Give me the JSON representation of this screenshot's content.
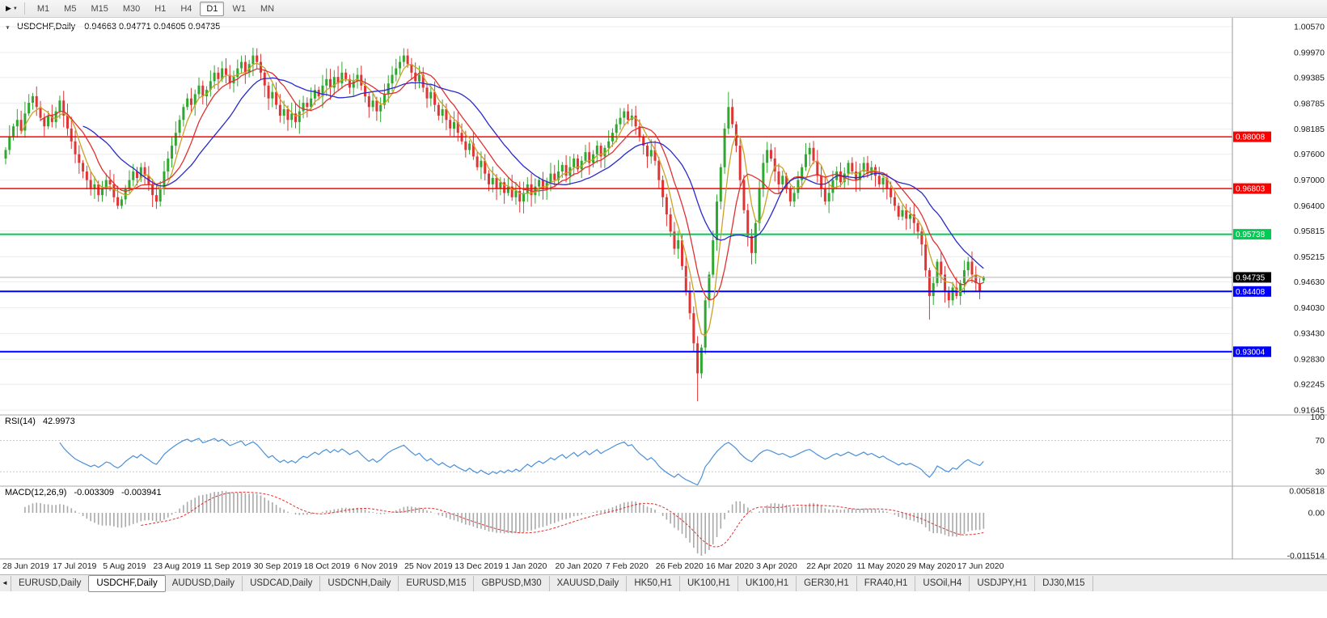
{
  "icons": {
    "chart_type_arrow": "▶",
    "dropdown": "▼",
    "chart_marker": "▼",
    "tab_scroll_left": "◄"
  },
  "toolbar": {
    "timeframes": [
      "M1",
      "M5",
      "M15",
      "M30",
      "H1",
      "H4",
      "D1",
      "W1",
      "MN"
    ],
    "active_timeframe": "D1"
  },
  "chart": {
    "symbol_title": "USDCHF,Daily",
    "ohlc_readout": "0.94663 0.94771 0.94605 0.94735"
  },
  "tabs": {
    "items": [
      "EURUSD,Daily",
      "USDCHF,Daily",
      "AUDUSD,Daily",
      "USDCAD,Daily",
      "USDCNH,Daily",
      "EURUSD,M15",
      "GBPUSD,M30",
      "XAUUSD,Daily",
      "HK50,H1",
      "UK100,H1",
      "UK100,H1",
      "GER30,H1",
      "FRA40,H1",
      "USOil,H4",
      "USDJPY,H1",
      "DJ30,M15"
    ],
    "active_index": 1
  },
  "chart_data": {
    "type": "candlestick",
    "symbol": "USDCHF",
    "timeframe": "Daily",
    "ohlc_current": {
      "open": 0.94663,
      "high": 0.94771,
      "low": 0.94605,
      "close": 0.94735
    },
    "price_range": [
      0.91645,
      1.0057
    ],
    "price_axis_ticks": [
      "1.00570",
      "0.99970",
      "0.99385",
      "0.98785",
      "0.98185",
      "0.97600",
      "0.97000",
      "0.96400",
      "0.95815",
      "0.95215",
      "0.94630",
      "0.94030",
      "0.93430",
      "0.92830",
      "0.92245",
      "0.91645"
    ],
    "date_labels": [
      "28 Jun 2019",
      "17 Jul 2019",
      "5 Aug 2019",
      "23 Aug 2019",
      "11 Sep 2019",
      "30 Sep 2019",
      "18 Oct 2019",
      "6 Nov 2019",
      "25 Nov 2019",
      "13 Dec 2019",
      "1 Jan 2020",
      "20 Jan 2020",
      "7 Feb 2020",
      "26 Feb 2020",
      "16 Mar 2020",
      "3 Apr 2020",
      "22 Apr 2020",
      "11 May 2020",
      "29 May 2020",
      "17 Jun 2020"
    ],
    "candles_per_label": 13,
    "high_cap": 1.0008,
    "low_cap": 0.9185,
    "closes": [
      0.977,
      0.98,
      0.9825,
      0.984,
      0.9815,
      0.9855,
      0.988,
      0.9895,
      0.987,
      0.9845,
      0.9825,
      0.985,
      0.9835,
      0.986,
      0.9885,
      0.985,
      0.982,
      0.979,
      0.976,
      0.974,
      0.972,
      0.97,
      0.968,
      0.969,
      0.9665,
      0.968,
      0.97,
      0.969,
      0.966,
      0.964,
      0.9655,
      0.968,
      0.97,
      0.972,
      0.9705,
      0.973,
      0.971,
      0.969,
      0.9665,
      0.965,
      0.968,
      0.972,
      0.975,
      0.978,
      0.981,
      0.984,
      0.987,
      0.989,
      0.9875,
      0.99,
      0.992,
      0.9895,
      0.991,
      0.993,
      0.995,
      0.9935,
      0.996,
      0.9945,
      0.9925,
      0.994,
      0.996,
      0.9975,
      0.995,
      0.997,
      0.999,
      0.9975,
      0.995,
      0.992,
      0.989,
      0.9905,
      0.9875,
      0.985,
      0.9865,
      0.984,
      0.9855,
      0.9835,
      0.986,
      0.988,
      0.987,
      0.989,
      0.991,
      0.9895,
      0.992,
      0.9935,
      0.9915,
      0.994,
      0.9925,
      0.995,
      0.9935,
      0.9915,
      0.993,
      0.9945,
      0.992,
      0.9895,
      0.987,
      0.9885,
      0.986,
      0.9875,
      0.99,
      0.9925,
      0.9945,
      0.996,
      0.9975,
      0.999,
      0.997,
      0.995,
      0.993,
      0.9945,
      0.9915,
      0.989,
      0.9905,
      0.9875,
      0.985,
      0.9865,
      0.984,
      0.982,
      0.9835,
      0.981,
      0.979,
      0.977,
      0.9785,
      0.9755,
      0.973,
      0.9745,
      0.9715,
      0.969,
      0.9705,
      0.968,
      0.9695,
      0.967,
      0.9685,
      0.966,
      0.9675,
      0.965,
      0.967,
      0.969,
      0.9665,
      0.9685,
      0.97,
      0.968,
      0.9695,
      0.9715,
      0.97,
      0.972,
      0.9735,
      0.971,
      0.973,
      0.975,
      0.9725,
      0.9745,
      0.9765,
      0.974,
      0.976,
      0.978,
      0.9755,
      0.9775,
      0.979,
      0.981,
      0.983,
      0.9845,
      0.986,
      0.984,
      0.985,
      0.9825,
      0.98,
      0.978,
      0.9755,
      0.977,
      0.9745,
      0.97,
      0.966,
      0.962,
      0.958,
      0.954,
      0.956,
      0.95,
      0.944,
      0.939,
      0.932,
      0.925,
      0.931,
      0.942,
      0.948,
      0.956,
      0.965,
      0.973,
      0.982,
      0.987,
      0.983,
      0.978,
      0.97,
      0.963,
      0.957,
      0.953,
      0.96,
      0.968,
      0.974,
      0.977,
      0.975,
      0.972,
      0.969,
      0.971,
      0.968,
      0.965,
      0.967,
      0.97,
      0.973,
      0.976,
      0.9775,
      0.9745,
      0.971,
      0.968,
      0.965,
      0.967,
      0.97,
      0.972,
      0.9695,
      0.9715,
      0.974,
      0.972,
      0.97,
      0.972,
      0.974,
      0.9715,
      0.973,
      0.971,
      0.969,
      0.9705,
      0.968,
      0.966,
      0.964,
      0.9615,
      0.963,
      0.961,
      0.962,
      0.96,
      0.958,
      0.955,
      0.949,
      0.943,
      0.946,
      0.951,
      0.948,
      0.944,
      0.942,
      0.945,
      0.943,
      0.946,
      0.949,
      0.951,
      0.948,
      0.946,
      0.944,
      0.94735
    ],
    "overrides": {
      "64": {
        "h": 1.0008
      },
      "103": {
        "h": 1.0007
      },
      "179": {
        "l": 0.9185
      },
      "187": {
        "h": 0.9905
      },
      "239": {
        "l": 0.9375
      },
      "253": {
        "o": 0.94663,
        "h": 0.94771,
        "l": 0.94605,
        "c": 0.94735
      }
    },
    "hlines": [
      {
        "price": 0.98008,
        "label": "0.98008",
        "color": "#ff0000",
        "width": 1.5
      },
      {
        "price": 0.96803,
        "label": "0.96803",
        "color": "#ff0000",
        "width": 1.5
      },
      {
        "price": 0.95738,
        "label": "0.95738",
        "color": "#00cc55",
        "width": 2
      },
      {
        "price": 0.94408,
        "label": "0.94408",
        "color": "#0000ff",
        "width": 2
      },
      {
        "price": 0.93004,
        "label": "0.93004",
        "color": "#0000ff",
        "width": 2
      }
    ],
    "current_price": {
      "value": 0.94735,
      "label": "0.94735"
    },
    "moving_averages": [
      {
        "name": "fast-ma",
        "period": 5,
        "type": "sma",
        "color": "#c9a227"
      },
      {
        "name": "medium-ma",
        "period": 10,
        "type": "sma",
        "color": "#e03030"
      },
      {
        "name": "slow-ma",
        "period": 21,
        "type": "sma",
        "color": "#2929cc"
      }
    ],
    "rsi": {
      "label": "RSI(14)",
      "value_label": "42.9973",
      "period": 14,
      "levels": [
        70,
        30
      ],
      "axis_ticks": [
        "100",
        "70",
        "30"
      ],
      "color": "#4a90d9"
    },
    "macd": {
      "label": "MACD(12,26,9)",
      "macd_value_label": "-0.003309",
      "signal_value_label": "-0.003941",
      "fast": 12,
      "slow": 26,
      "signal": 9,
      "axis_ticks": [
        "0.005818",
        "0.00",
        "-0.011514"
      ],
      "histogram_color": "#a9a9a9",
      "signal_color": "#e03030"
    },
    "colors": {
      "up": "#2fa82f",
      "down": "#e03535",
      "grid": "#ececec",
      "axis_text": "#1a1a1a",
      "bid_line": "#b4b4b4",
      "badge_text": "#ffffff",
      "current_badge_bg": "#000000",
      "separator": "#a8a8a8",
      "levels_dash": "#c9c9c9"
    }
  }
}
